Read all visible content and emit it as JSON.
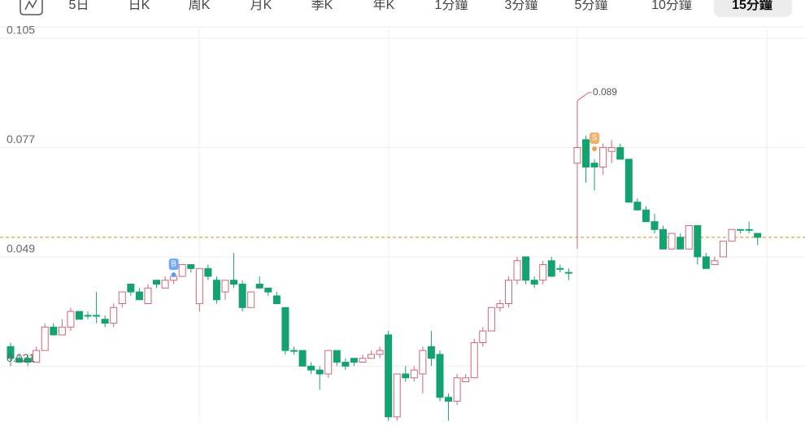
{
  "tabs": [
    "5日",
    "日K",
    "周K",
    "月K",
    "季K",
    "年K",
    "1分鐘",
    "3分鐘",
    "5分鐘",
    "10分鐘",
    "15分鐘"
  ],
  "selected_tab": 10,
  "chart_data": {
    "type": "candlestick",
    "ylim": [
      0.0067,
      0.1075
    ],
    "yticks": [
      0.105,
      0.077,
      0.049,
      0.021
    ],
    "grid": true,
    "up_color": "#d0667a",
    "down_color": "#13a270",
    "reference_line": 0.054,
    "reference_color": "#e0a040",
    "markers": [
      "B",
      "S"
    ],
    "open": [
      0.026,
      0.023,
      0.023,
      0.022,
      0.025,
      0.031,
      0.029,
      0.031,
      0.035,
      0.034,
      0.034,
      0.033,
      0.032,
      0.037,
      0.042,
      0.04,
      0.037,
      0.043,
      0.041,
      0.043,
      0.044,
      0.047,
      0.037,
      0.046,
      0.043,
      0.04,
      0.043,
      0.042,
      0.036,
      0.042,
      0.041,
      0.039,
      0.036,
      0.025,
      0.025,
      0.021,
      0.02,
      0.019,
      0.025,
      0.022,
      0.023,
      0.022,
      0.023,
      0.024,
      0.029,
      0.008,
      0.019,
      0.018,
      0.019,
      0.026,
      0.024,
      0.013,
      0.012,
      0.017,
      0.018,
      0.027,
      0.03,
      0.036,
      0.037,
      0.043,
      0.049,
      0.043,
      0.043,
      0.048,
      0.046,
      0.045,
      0.073,
      0.079,
      0.073,
      0.072,
      0.076,
      0.077,
      0.074,
      0.063,
      0.061,
      0.058,
      0.056,
      0.051,
      0.054,
      0.051,
      0.057,
      0.049,
      0.047,
      0.049,
      0.053,
      0.056,
      0.056,
      0.055
    ],
    "high": [
      0.027,
      0.024,
      0.024,
      0.026,
      0.032,
      0.032,
      0.033,
      0.036,
      0.035,
      0.035,
      0.04,
      0.034,
      0.037,
      0.04,
      0.042,
      0.041,
      0.042,
      0.043,
      0.044,
      0.045,
      0.047,
      0.047,
      0.046,
      0.047,
      0.044,
      0.043,
      0.05,
      0.043,
      0.04,
      0.044,
      0.041,
      0.04,
      0.036,
      0.026,
      0.025,
      0.022,
      0.021,
      0.025,
      0.025,
      0.023,
      0.023,
      0.024,
      0.025,
      0.026,
      0.03,
      0.019,
      0.021,
      0.021,
      0.026,
      0.03,
      0.025,
      0.014,
      0.019,
      0.019,
      0.028,
      0.031,
      0.036,
      0.038,
      0.044,
      0.049,
      0.049,
      0.044,
      0.048,
      0.049,
      0.047,
      0.046,
      0.089,
      0.08,
      0.074,
      0.078,
      0.079,
      0.078,
      0.074,
      0.064,
      0.062,
      0.06,
      0.057,
      0.055,
      0.055,
      0.057,
      0.057,
      0.05,
      0.049,
      0.053,
      0.056,
      0.056,
      0.058,
      0.055
    ],
    "low": [
      0.021,
      0.022,
      0.021,
      0.022,
      0.025,
      0.029,
      0.029,
      0.03,
      0.033,
      0.033,
      0.032,
      0.031,
      0.031,
      0.036,
      0.039,
      0.038,
      0.037,
      0.041,
      0.041,
      0.042,
      0.044,
      0.045,
      0.035,
      0.043,
      0.037,
      0.038,
      0.041,
      0.035,
      0.036,
      0.041,
      0.039,
      0.037,
      0.024,
      0.024,
      0.021,
      0.019,
      0.015,
      0.018,
      0.021,
      0.02,
      0.021,
      0.022,
      0.023,
      0.023,
      0.007,
      0.007,
      0.017,
      0.017,
      0.014,
      0.021,
      0.012,
      0.007,
      0.011,
      0.017,
      0.018,
      0.026,
      0.03,
      0.035,
      0.036,
      0.042,
      0.042,
      0.041,
      0.042,
      0.044,
      0.045,
      0.043,
      0.051,
      0.068,
      0.066,
      0.07,
      0.073,
      0.074,
      0.063,
      0.061,
      0.058,
      0.055,
      0.051,
      0.051,
      0.051,
      0.051,
      0.047,
      0.046,
      0.047,
      0.049,
      0.053,
      0.055,
      0.055,
      0.052
    ],
    "close": [
      0.023,
      0.022,
      0.022,
      0.025,
      0.031,
      0.029,
      0.031,
      0.035,
      0.033,
      0.034,
      0.034,
      0.032,
      0.036,
      0.04,
      0.04,
      0.038,
      0.041,
      0.042,
      0.043,
      0.044,
      0.047,
      0.046,
      0.046,
      0.044,
      0.038,
      0.043,
      0.042,
      0.036,
      0.04,
      0.041,
      0.04,
      0.037,
      0.025,
      0.025,
      0.021,
      0.02,
      0.019,
      0.025,
      0.022,
      0.021,
      0.022,
      0.023,
      0.024,
      0.025,
      0.008,
      0.019,
      0.018,
      0.02,
      0.025,
      0.023,
      0.013,
      0.012,
      0.018,
      0.018,
      0.027,
      0.03,
      0.036,
      0.037,
      0.043,
      0.048,
      0.043,
      0.042,
      0.047,
      0.044,
      0.046,
      0.045,
      0.077,
      0.072,
      0.072,
      0.077,
      0.077,
      0.074,
      0.063,
      0.061,
      0.058,
      0.056,
      0.051,
      0.055,
      0.051,
      0.057,
      0.049,
      0.046,
      0.048,
      0.053,
      0.056,
      0.056,
      0.056,
      0.054
    ]
  }
}
